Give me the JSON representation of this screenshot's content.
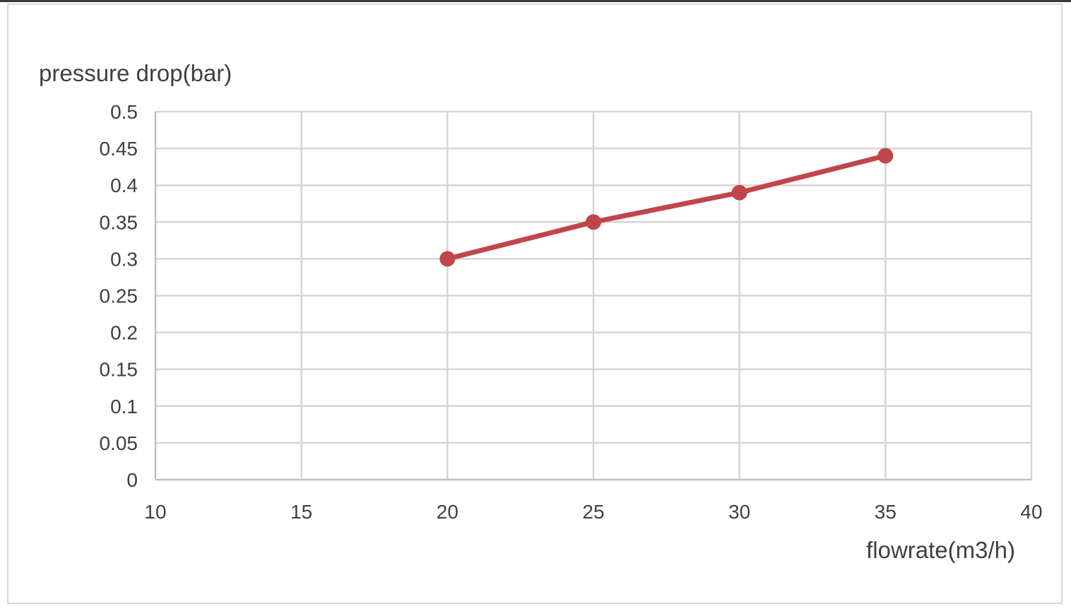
{
  "chart_data": {
    "type": "line",
    "title": "",
    "xlabel": "flowrate(m3/h)",
    "ylabel": "pressure drop(bar)",
    "xlim": [
      10,
      40
    ],
    "ylim": [
      0,
      0.5
    ],
    "xticks": [
      "10",
      "15",
      "20",
      "25",
      "30",
      "35",
      "40"
    ],
    "yticks": [
      "0",
      "0.05",
      "0.1",
      "0.15",
      "0.2",
      "0.25",
      "0.3",
      "0.35",
      "0.4",
      "0.45",
      "0.5"
    ],
    "grid": true,
    "legend": "none",
    "series": [
      {
        "color": "#c0464a",
        "x": [
          20,
          25,
          30,
          35
        ],
        "y": [
          0.3,
          0.35,
          0.39,
          0.44
        ]
      }
    ]
  }
}
